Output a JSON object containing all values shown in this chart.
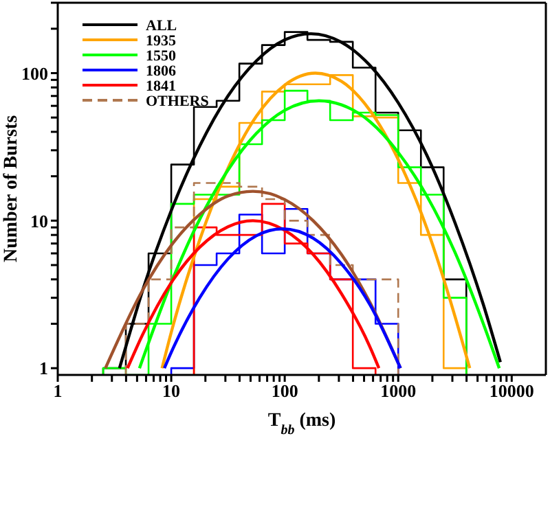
{
  "chart_data": {
    "type": "histogram",
    "xlabel": "T$_{bb}$ (ms)",
    "ylabel": "Number of Bursts",
    "log": "xy",
    "grid": false,
    "legend": "top left",
    "marker": "none",
    "xlim": [
      1,
      20000
    ],
    "ylim": [
      0.9,
      300
    ],
    "xticks": [
      1,
      {
        "value": 2,
        "label": null
      },
      {
        "value": 3,
        "label": null
      },
      {
        "value": 4,
        "label": null
      },
      {
        "value": 5,
        "label": null
      },
      {
        "value": 6,
        "label": null
      },
      {
        "value": 7,
        "label": null
      },
      {
        "value": 8,
        "label": null
      },
      {
        "value": 9,
        "label": null
      },
      10,
      {
        "value": 20,
        "label": null
      },
      {
        "value": 30,
        "label": null
      },
      {
        "value": 40,
        "label": null
      },
      {
        "value": 50,
        "label": null
      },
      {
        "value": 60,
        "label": null
      },
      {
        "value": 70,
        "label": null
      },
      {
        "value": 80,
        "label": null
      },
      {
        "value": 90,
        "label": null
      },
      100,
      {
        "value": 200,
        "label": null
      },
      {
        "value": 300,
        "label": null
      },
      {
        "value": 400,
        "label": null
      },
      {
        "value": 500,
        "label": null
      },
      {
        "value": 600,
        "label": null
      },
      {
        "value": 700,
        "label": null
      },
      {
        "value": 800,
        "label": null
      },
      {
        "value": 900,
        "label": null
      },
      1000,
      {
        "value": 2000,
        "label": null
      },
      {
        "value": 3000,
        "label": null
      },
      {
        "value": 4000,
        "label": null
      },
      {
        "value": 5000,
        "label": null
      },
      {
        "value": 6000,
        "label": null
      },
      {
        "value": 7000,
        "label": null
      },
      {
        "value": 8000,
        "label": null
      },
      {
        "value": 9000,
        "label": null
      },
      10000
    ],
    "yticks": [
      1,
      {
        "value": 2,
        "label": null
      },
      {
        "value": 3,
        "label": null
      },
      {
        "value": 4,
        "label": null
      },
      {
        "value": 5,
        "label": null
      },
      {
        "value": 6,
        "label": null
      },
      {
        "value": 7,
        "label": null
      },
      {
        "value": 8,
        "label": null
      },
      {
        "value": 9,
        "label": null
      },
      10,
      {
        "value": 20,
        "label": null
      },
      {
        "value": 30,
        "label": null
      },
      {
        "value": 40,
        "label": null
      },
      {
        "value": 50,
        "label": null
      },
      {
        "value": 60,
        "label": null
      },
      {
        "value": 70,
        "label": null
      },
      {
        "value": 80,
        "label": null
      },
      {
        "value": 90,
        "label": null
      },
      100,
      {
        "value": 200,
        "label": null
      },
      {
        "value": 300,
        "label": null
      }
    ],
    "bins": [
      2.512,
      3.981,
      6.31,
      10,
      15.85,
      25.12,
      39.81,
      63.1,
      100,
      158.5,
      251.2,
      398.1,
      631,
      1000,
      1585,
      2512,
      3981
    ],
    "series": [
      {
        "name": "ALL",
        "color": "#000000",
        "values": [
          1,
          2,
          6,
          24,
          59,
          65,
          116,
          155,
          190,
          168,
          163,
          109,
          54,
          41,
          23,
          4
        ]
      },
      {
        "name": "1935",
        "color": "#ffa500",
        "bins": [
          15.85,
          25.12,
          39.81,
          63.1,
          100,
          158.5,
          251.2,
          398.1,
          631,
          1000,
          1585,
          2512,
          3981
        ],
        "values": [
          14,
          17,
          46,
          75,
          84,
          84,
          97,
          51,
          50,
          18,
          8,
          1
        ]
      },
      {
        "name": "1550",
        "color": "#00ff00",
        "values": [
          1,
          null,
          2,
          13,
          15,
          15,
          33,
          48,
          76,
          65,
          48,
          54,
          52,
          23,
          15,
          3
        ]
      },
      {
        "name": "1806",
        "color": "#0000ff",
        "bins": [
          10,
          15.85,
          25.12,
          39.81,
          63.1,
          100,
          158.5,
          251.2,
          398.1,
          631,
          1000
        ],
        "values": [
          1,
          5,
          6,
          11,
          6,
          12,
          6,
          4,
          4,
          2
        ]
      },
      {
        "name": "1841",
        "color": "#ff0000",
        "bins": [
          15.85,
          25.12,
          39.81,
          63.1,
          100,
          158.5,
          251.2,
          398.1,
          631
        ],
        "values": [
          9,
          8,
          8,
          13,
          7,
          6,
          4,
          1
        ]
      },
      {
        "name": "OTHERS",
        "color": "#b07850",
        "line_style": "dashed",
        "bins": [
          3.981,
          6.31,
          10,
          15.85,
          25.12,
          39.81,
          63.1,
          100,
          158.5,
          251.2,
          398.1,
          631,
          1000
        ],
        "values": [
          2,
          4,
          9,
          18,
          18,
          17,
          14,
          10,
          8,
          5,
          4,
          4
        ]
      },
      {
        "type": "line",
        "color": "#000000",
        "x": [
          3.5,
          3.98,
          5.62,
          10,
          17.8,
          31.6,
          56.2,
          100,
          170,
          316,
          562,
          1000,
          1778,
          3162,
          5623,
          7943
        ],
        "values": [
          1,
          1.4,
          3.4,
          11.7,
          32,
          70,
          121,
          168,
          185,
          162,
          113,
          63,
          28,
          9.7,
          2.7,
          1.1
        ]
      },
      {
        "type": "line",
        "color": "#ffa500",
        "x": [
          8.3,
          10,
          17.8,
          31.6,
          56.2,
          100,
          186,
          316,
          562,
          1000,
          1778,
          3162,
          4266
        ],
        "values": [
          1,
          1.75,
          7.4,
          22.6,
          51,
          83,
          100,
          88,
          56,
          26,
          9,
          2.25,
          1
        ]
      },
      {
        "type": "line",
        "color": "#00ff00",
        "x": [
          5.25,
          10,
          17.8,
          31.6,
          56.2,
          100,
          200,
          316,
          562,
          1000,
          1778,
          3162,
          5623,
          7762
        ],
        "values": [
          1,
          3.8,
          10.2,
          22,
          39,
          56,
          65,
          61,
          47,
          29,
          14.8,
          6.1,
          2,
          1
        ]
      },
      {
        "type": "line",
        "color": "#a0522d",
        "x": [
          2.63,
          5.62,
          10,
          17.8,
          31.6,
          52.5,
          100,
          178,
          316,
          562,
          1047
        ],
        "values": [
          1,
          3.4,
          6.8,
          11,
          14.7,
          15.8,
          13.9,
          10,
          5.9,
          2.8,
          1
        ]
      },
      {
        "type": "line",
        "color": "#ff0000",
        "x": [
          4.12,
          5.62,
          10,
          17.8,
          31.6,
          52.5,
          100,
          178,
          316,
          562,
          676
        ],
        "values": [
          1,
          1.7,
          3.8,
          6.6,
          9.1,
          10,
          8.6,
          5.9,
          3.2,
          1.4,
          1
        ]
      },
      {
        "type": "line",
        "color": "#0000ff",
        "x": [
          8.7,
          10,
          17.8,
          31.6,
          56.2,
          95.5,
          178,
          316,
          562,
          1047
        ],
        "values": [
          1,
          1.28,
          3,
          5.5,
          7.9,
          8.8,
          7.6,
          5.1,
          2.7,
          1
        ]
      }
    ]
  }
}
